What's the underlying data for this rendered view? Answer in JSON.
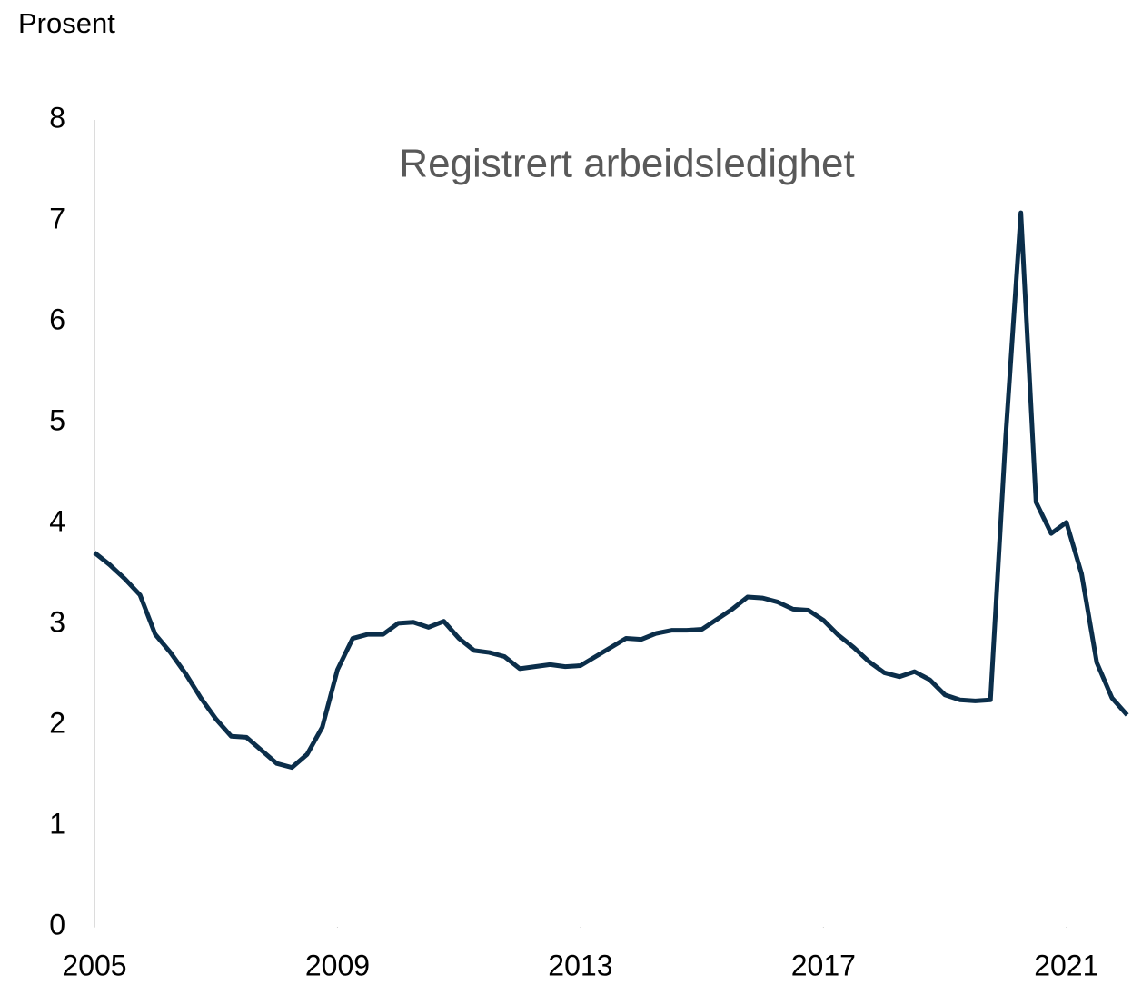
{
  "chart_data": {
    "type": "line",
    "y_unit_label": "Prosent",
    "annotation": "Registrert arbeidsledighet",
    "x": [
      2005,
      2005.25,
      2005.5,
      2005.75,
      2006,
      2006.25,
      2006.5,
      2006.75,
      2007,
      2007.25,
      2007.5,
      2007.75,
      2008,
      2008.25,
      2008.5,
      2008.75,
      2009,
      2009.25,
      2009.5,
      2009.75,
      2010,
      2010.25,
      2010.5,
      2010.75,
      2011,
      2011.25,
      2011.5,
      2011.75,
      2012,
      2012.25,
      2012.5,
      2012.75,
      2013,
      2013.25,
      2013.5,
      2013.75,
      2014,
      2014.25,
      2014.5,
      2014.75,
      2015,
      2015.25,
      2015.5,
      2015.75,
      2016,
      2016.25,
      2016.5,
      2016.75,
      2017,
      2017.25,
      2017.5,
      2017.75,
      2018,
      2018.25,
      2018.5,
      2018.75,
      2019,
      2019.25,
      2019.5,
      2019.75,
      2020,
      2020.25,
      2020.5,
      2020.75,
      2021,
      2021.25,
      2021.5,
      2021.75,
      2022
    ],
    "series": [
      {
        "name": "Registrert arbeidsledighet",
        "color": "#0b2e4a",
        "values": [
          3.71,
          3.59,
          3.45,
          3.29,
          2.9,
          2.72,
          2.51,
          2.27,
          2.06,
          1.89,
          1.88,
          1.75,
          1.62,
          1.58,
          1.71,
          1.98,
          2.55,
          2.86,
          2.9,
          2.9,
          3.01,
          3.02,
          2.97,
          3.03,
          2.86,
          2.74,
          2.72,
          2.68,
          2.56,
          2.58,
          2.6,
          2.58,
          2.59,
          2.68,
          2.77,
          2.86,
          2.85,
          2.91,
          2.94,
          2.94,
          2.95,
          3.05,
          3.15,
          3.27,
          3.26,
          3.22,
          3.15,
          3.14,
          3.04,
          2.89,
          2.77,
          2.63,
          2.52,
          2.48,
          2.53,
          2.45,
          2.3,
          2.25,
          2.24,
          2.25,
          4.86,
          7.08,
          4.21,
          3.9,
          4.01,
          3.5,
          2.62,
          2.27,
          2.1
        ]
      }
    ],
    "xlim": [
      2005,
      2022.05
    ],
    "xticks": [
      2005,
      2009,
      2013,
      2017,
      2021
    ],
    "ylim": [
      0,
      8
    ],
    "yticks": [
      0,
      1,
      2,
      3,
      4,
      5,
      6,
      7,
      8
    ],
    "grid": false
  }
}
